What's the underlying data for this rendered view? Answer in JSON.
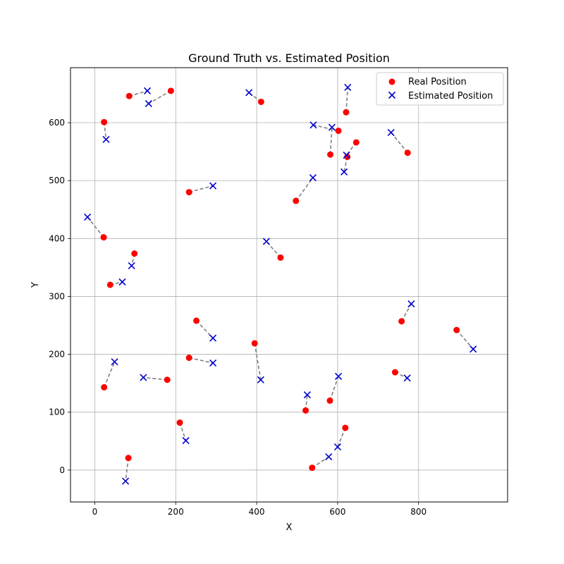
{
  "chart_data": {
    "type": "scatter",
    "title": "Ground Truth vs. Estimated Position",
    "xlabel": "X",
    "ylabel": "Y",
    "xlim": [
      -60,
      1020
    ],
    "ylim": [
      -55,
      695
    ],
    "xticks": [
      0,
      200,
      400,
      600,
      800
    ],
    "yticks": [
      0,
      100,
      200,
      300,
      400,
      500,
      600
    ],
    "grid": true,
    "legend_position": "top-right",
    "colors": {
      "real": "#ff0000",
      "estimated": "#0000cc",
      "connector": "#808080"
    },
    "series": [
      {
        "name": "Real Position",
        "marker": "circle",
        "points": [
          [
            85,
            646
          ],
          [
            188,
            655
          ],
          [
            23,
            601
          ],
          [
            411,
            636
          ],
          [
            621,
            618
          ],
          [
            602,
            586
          ],
          [
            582,
            545
          ],
          [
            646,
            566
          ],
          [
            624,
            541
          ],
          [
            773,
            548
          ],
          [
            497,
            465
          ],
          [
            233,
            480
          ],
          [
            22,
            402
          ],
          [
            98,
            374
          ],
          [
            38,
            320
          ],
          [
            459,
            367
          ],
          [
            251,
            258
          ],
          [
            233,
            194
          ],
          [
            395,
            219
          ],
          [
            758,
            257
          ],
          [
            894,
            242
          ],
          [
            23,
            143
          ],
          [
            179,
            156
          ],
          [
            742,
            169
          ],
          [
            581,
            120
          ],
          [
            521,
            103
          ],
          [
            210,
            82
          ],
          [
            619,
            73
          ],
          [
            83,
            21
          ],
          [
            537,
            4
          ]
        ]
      },
      {
        "name": "Estimated Position",
        "marker": "x",
        "points": [
          [
            130,
            655
          ],
          [
            133,
            633
          ],
          [
            28,
            571
          ],
          [
            381,
            652
          ],
          [
            625,
            661
          ],
          [
            540,
            596
          ],
          [
            586,
            592
          ],
          [
            622,
            544
          ],
          [
            616,
            515
          ],
          [
            732,
            583
          ],
          [
            539,
            505
          ],
          [
            292,
            491
          ],
          [
            -18,
            437
          ],
          [
            91,
            353
          ],
          [
            68,
            325
          ],
          [
            424,
            395
          ],
          [
            292,
            228
          ],
          [
            292,
            185
          ],
          [
            410,
            156
          ],
          [
            782,
            287
          ],
          [
            935,
            209
          ],
          [
            49,
            187
          ],
          [
            120,
            160
          ],
          [
            772,
            159
          ],
          [
            602,
            162
          ],
          [
            525,
            130
          ],
          [
            225,
            51
          ],
          [
            600,
            40
          ],
          [
            76,
            -19
          ],
          [
            578,
            23
          ]
        ]
      }
    ]
  }
}
